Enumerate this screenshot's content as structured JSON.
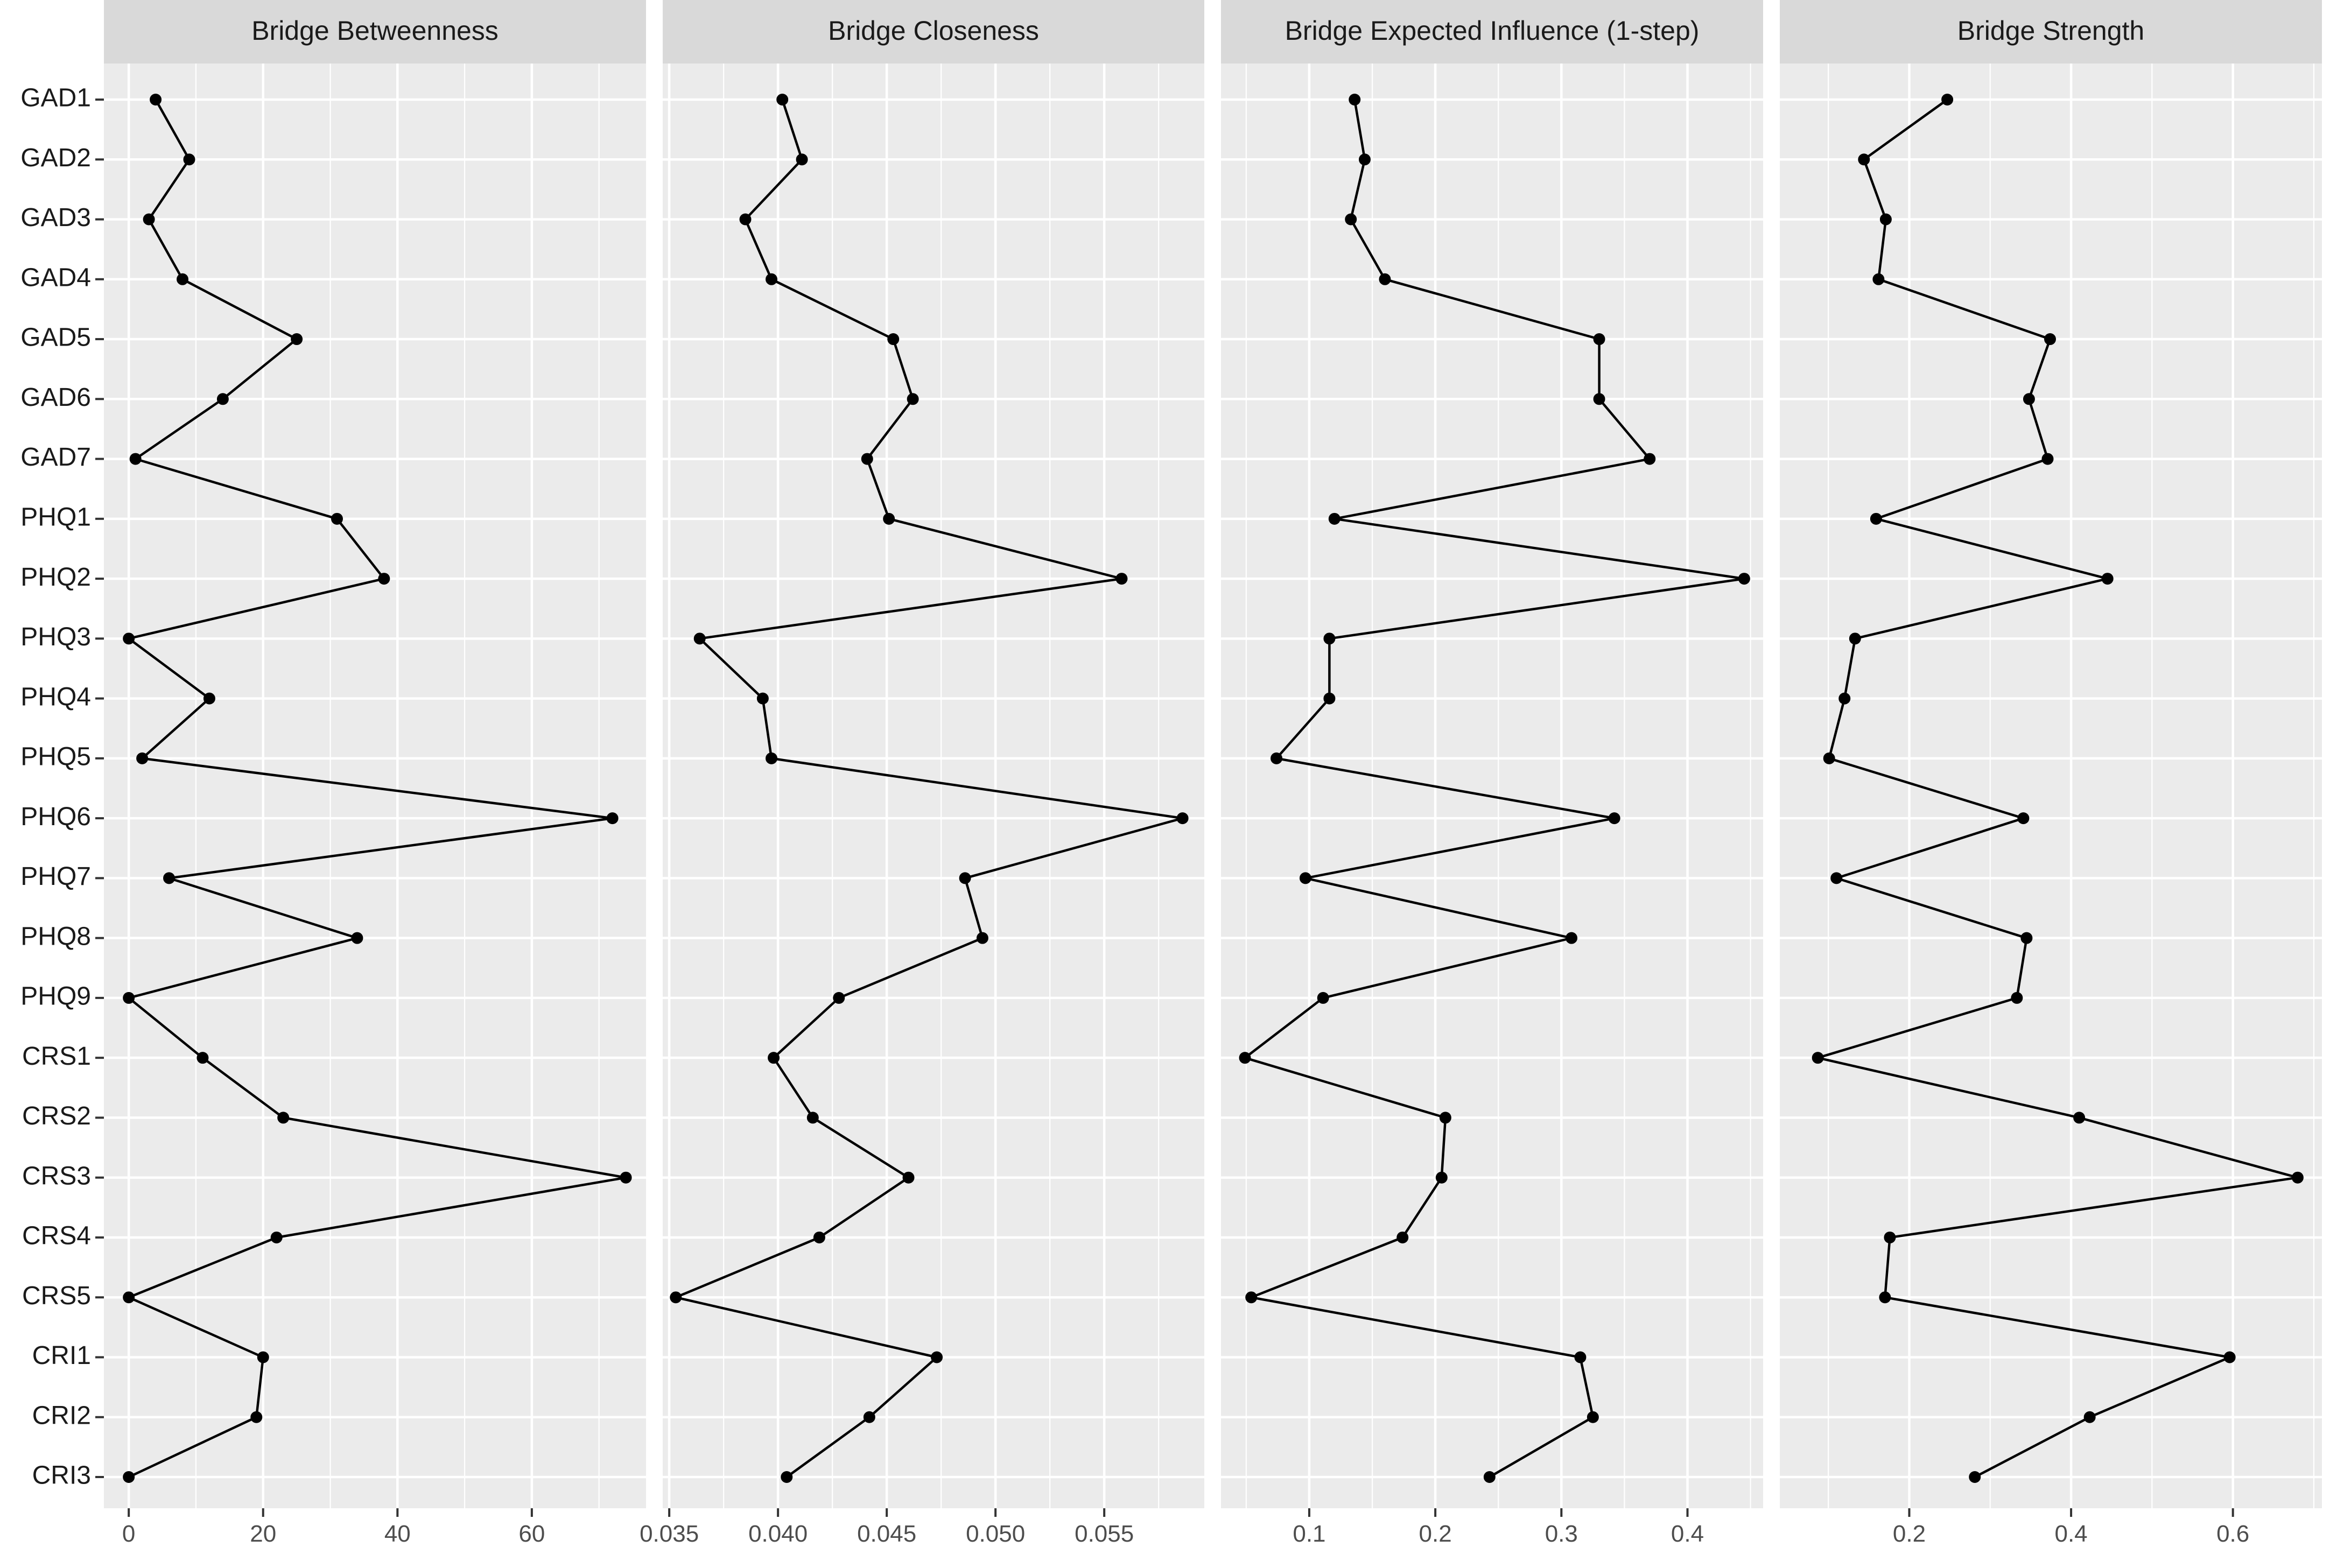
{
  "chart_data": {
    "type": "line",
    "facet_orientation": "horizontal-values, categorical-y",
    "grid": true,
    "legend": "none",
    "colors": {
      "panel": "#ebebeb",
      "strip": "#d9d9d9",
      "line": "#000000",
      "grid": "#ffffff"
    },
    "categories": [
      "GAD1",
      "GAD2",
      "GAD3",
      "GAD4",
      "GAD5",
      "GAD6",
      "GAD7",
      "PHQ1",
      "PHQ2",
      "PHQ3",
      "PHQ4",
      "PHQ5",
      "PHQ6",
      "PHQ7",
      "PHQ8",
      "PHQ9",
      "CRS1",
      "CRS2",
      "CRS3",
      "CRS4",
      "CRS5",
      "CRI1",
      "CRI2",
      "CRI3"
    ],
    "panels": [
      {
        "title": "Bridge Betweenness",
        "xlim": [
          -3.7,
          77
        ],
        "xticks": [
          0,
          20,
          40,
          60
        ],
        "xtick_labels": [
          "0",
          "20",
          "40",
          "60"
        ],
        "values": [
          4,
          9,
          3,
          8,
          25,
          14,
          1,
          31,
          38,
          0,
          12,
          2,
          72,
          6,
          34,
          0,
          11,
          23,
          74,
          22,
          0,
          20,
          19,
          0
        ]
      },
      {
        "title": "Bridge Closeness",
        "xlim": [
          0.0347,
          0.0596
        ],
        "xticks": [
          0.035,
          0.04,
          0.045,
          0.05,
          0.055
        ],
        "xtick_labels": [
          "0.035",
          "0.040",
          "0.045",
          "0.050",
          "0.055"
        ],
        "values": [
          0.0402,
          0.0411,
          0.0385,
          0.0397,
          0.0453,
          0.0462,
          0.0441,
          0.0451,
          0.0558,
          0.0364,
          0.0393,
          0.0397,
          0.0586,
          0.0486,
          0.0494,
          0.0428,
          0.0398,
          0.0416,
          0.046,
          0.0419,
          0.0353,
          0.0473,
          0.0442,
          0.0404
        ]
      },
      {
        "title": "Bridge Expected Influence (1-step)",
        "xlim": [
          0.03,
          0.46
        ],
        "xticks": [
          0.1,
          0.2,
          0.3,
          0.4
        ],
        "xtick_labels": [
          "0.1",
          "0.2",
          "0.3",
          "0.4"
        ],
        "values": [
          0.136,
          0.144,
          0.133,
          0.16,
          0.33,
          0.33,
          0.37,
          0.12,
          0.445,
          0.116,
          0.116,
          0.074,
          0.342,
          0.097,
          0.308,
          0.111,
          0.049,
          0.208,
          0.205,
          0.174,
          0.054,
          0.315,
          0.325,
          0.243
        ]
      },
      {
        "title": "Bridge Strength",
        "xlim": [
          0.04,
          0.71
        ],
        "xticks": [
          0.2,
          0.4,
          0.6
        ],
        "xtick_labels": [
          "0.2",
          "0.4",
          "0.6"
        ],
        "values": [
          0.247,
          0.144,
          0.171,
          0.162,
          0.374,
          0.348,
          0.371,
          0.159,
          0.445,
          0.133,
          0.12,
          0.101,
          0.341,
          0.11,
          0.345,
          0.333,
          0.087,
          0.41,
          0.68,
          0.176,
          0.17,
          0.596,
          0.423,
          0.281
        ]
      }
    ]
  }
}
